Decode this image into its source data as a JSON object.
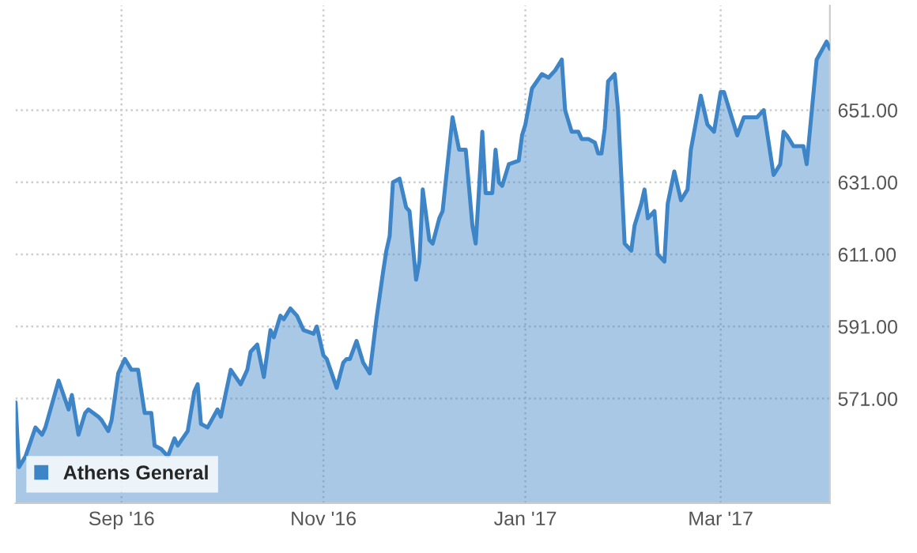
{
  "chart_data": {
    "type": "area",
    "x": [
      "2016-07-31",
      "2016-08-01",
      "2016-08-03",
      "2016-08-06",
      "2016-08-08",
      "2016-08-09",
      "2016-08-13",
      "2016-08-16",
      "2016-08-17",
      "2016-08-19",
      "2016-08-21",
      "2016-08-22",
      "2016-08-25",
      "2016-08-26",
      "2016-08-28",
      "2016-08-29",
      "2016-08-31",
      "2016-09-02",
      "2016-09-04",
      "2016-09-06",
      "2016-09-08",
      "2016-09-10",
      "2016-09-11",
      "2016-09-13",
      "2016-09-15",
      "2016-09-17",
      "2016-09-18",
      "2016-09-21",
      "2016-09-23",
      "2016-09-24",
      "2016-09-25",
      "2016-09-27",
      "2016-09-30",
      "2016-10-01",
      "2016-10-04",
      "2016-10-07",
      "2016-10-09",
      "2016-10-10",
      "2016-10-12",
      "2016-10-14",
      "2016-10-16",
      "2016-10-17",
      "2016-10-19",
      "2016-10-20",
      "2016-10-22",
      "2016-10-24",
      "2016-10-26",
      "2016-10-29",
      "2016-10-30",
      "2016-11-01",
      "2016-11-02",
      "2016-11-05",
      "2016-11-07",
      "2016-11-08",
      "2016-11-09",
      "2016-11-11",
      "2016-11-13",
      "2016-11-15",
      "2016-11-17",
      "2016-11-19",
      "2016-11-20",
      "2016-11-21",
      "2016-11-22",
      "2016-11-24",
      "2016-11-26",
      "2016-11-27",
      "2016-11-29",
      "2016-11-30",
      "2016-12-01",
      "2016-12-03",
      "2016-12-04",
      "2016-12-06",
      "2016-12-07",
      "2016-12-10",
      "2016-12-12",
      "2016-12-14",
      "2016-12-16",
      "2016-12-17",
      "2016-12-18",
      "2016-12-19",
      "2016-12-20",
      "2016-12-22",
      "2016-12-23",
      "2016-12-24",
      "2016-12-25",
      "2016-12-27",
      "2016-12-30",
      "2016-12-31",
      "2017-01-01",
      "2017-01-03",
      "2017-01-06",
      "2017-01-08",
      "2017-01-10",
      "2017-01-12",
      "2017-01-13",
      "2017-01-15",
      "2017-01-17",
      "2017-01-18",
      "2017-01-20",
      "2017-01-22",
      "2017-01-23",
      "2017-01-24",
      "2017-01-25",
      "2017-01-26",
      "2017-01-28",
      "2017-01-29",
      "2017-01-31",
      "2017-02-02",
      "2017-02-03",
      "2017-02-05",
      "2017-02-06",
      "2017-02-07",
      "2017-02-09",
      "2017-02-10",
      "2017-02-12",
      "2017-02-13",
      "2017-02-15",
      "2017-02-17",
      "2017-02-19",
      "2017-02-20",
      "2017-02-23",
      "2017-02-25",
      "2017-02-27",
      "2017-03-01",
      "2017-03-02",
      "2017-03-06",
      "2017-03-08",
      "2017-03-12",
      "2017-03-14",
      "2017-03-16",
      "2017-03-17",
      "2017-03-19",
      "2017-03-20",
      "2017-03-21",
      "2017-03-23",
      "2017-03-26",
      "2017-03-27",
      "2017-03-30",
      "2017-04-02",
      "2017-04-03"
    ],
    "series": [
      {
        "name": "Athens General",
        "color": "#3d85c6",
        "values": [
          570,
          552,
          555,
          563,
          561,
          563,
          576,
          568,
          572,
          561,
          567,
          568,
          566,
          565,
          562,
          565,
          578,
          582,
          579,
          579,
          567,
          567,
          558,
          557,
          555,
          560,
          558,
          562,
          573,
          575,
          564,
          563,
          568,
          566,
          579,
          575,
          579,
          584,
          586,
          577,
          590,
          588,
          594,
          593,
          596,
          594,
          590,
          589,
          591,
          583,
          582,
          574,
          581,
          582,
          582,
          587,
          581,
          578,
          593,
          606,
          612,
          616,
          631,
          632,
          624,
          623,
          604,
          609,
          629,
          615,
          614,
          621,
          623,
          649,
          640,
          640,
          619,
          614,
          629,
          645,
          628,
          628,
          640,
          631,
          630,
          636,
          637,
          644,
          647,
          657,
          661,
          660,
          662,
          665,
          651,
          645,
          645,
          643,
          643,
          642,
          639,
          639,
          646,
          659,
          661,
          651,
          614,
          612,
          619,
          625,
          629,
          621,
          623,
          611,
          609,
          625,
          634,
          626,
          629,
          640,
          655,
          647,
          645,
          656,
          656,
          644,
          649,
          649,
          651,
          639,
          633,
          636,
          645,
          644,
          641,
          641,
          636,
          665,
          670,
          668
        ]
      }
    ],
    "xlim": [
      "2016-07-31",
      "2017-04-03"
    ],
    "xticks": [
      {
        "value": "2016-09-01",
        "label": "Sep '16"
      },
      {
        "value": "2016-11-01",
        "label": "Nov '16"
      },
      {
        "value": "2017-01-01",
        "label": "Jan '17"
      },
      {
        "value": "2017-03-01",
        "label": "Mar '17"
      }
    ],
    "ylim": [
      542,
      680
    ],
    "yticks": [
      {
        "value": 571,
        "label": "571.00"
      },
      {
        "value": 591,
        "label": "591.00"
      },
      {
        "value": 611,
        "label": "611.00"
      },
      {
        "value": 631,
        "label": "631.00"
      },
      {
        "value": 651,
        "label": "651.00"
      }
    ],
    "grid": true,
    "legend": "bottom left"
  }
}
